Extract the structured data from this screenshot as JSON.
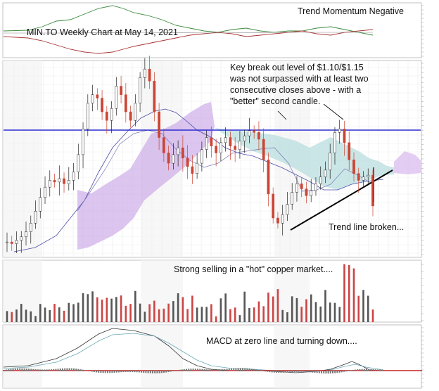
{
  "annotations": {
    "chart_title": "MIN.TO Weekly Chart at May 14, 2021",
    "trend_momentum": "Trend Momentum Negative",
    "breakout_line1": "Key break out level of $1.10/$1.15",
    "breakout_line2": "was not surpassed with at least two",
    "breakout_line3": "consecutive closes above - with a",
    "breakout_line4": "\"better\" second candle.",
    "trendline_broken": "Trend line broken...",
    "selling": "Strong selling in a \"hot\" copper market....",
    "macd": "MACD at zero line and turning down...."
  },
  "chart_data": {
    "type": "line",
    "description_panels": [
      "momentum",
      "price",
      "volume",
      "macd"
    ],
    "price": {
      "series": [
        {
          "name": "MIN.TO weekly close",
          "values": [
            0.44,
            0.43,
            0.45,
            0.47,
            0.5,
            0.55,
            0.62,
            0.7,
            0.76,
            0.8,
            0.79,
            0.81,
            0.78,
            0.8,
            0.85,
            0.95,
            1.1,
            1.25,
            1.3,
            1.28,
            1.2,
            1.15,
            1.22,
            1.35,
            1.3,
            1.2,
            1.15,
            1.25,
            1.4,
            1.45,
            1.38,
            1.2,
            1.05,
            0.96,
            0.9,
            0.95,
            0.99,
            0.93,
            0.88,
            0.84,
            0.9,
            0.98,
            1.05,
            1.0,
            0.96,
            1.02,
            1.05,
            1.0,
            0.98,
            1.03,
            1.06,
            1.09,
            1.08,
            1.04,
            0.92,
            0.72,
            0.58,
            0.55,
            0.6,
            0.66,
            0.73,
            0.78,
            0.75,
            0.71,
            0.74,
            0.78,
            0.82,
            0.86,
            0.96,
            1.08,
            1.1,
            1.02,
            0.92,
            0.84,
            0.8,
            0.82,
            0.83,
            0.65
          ]
        }
      ],
      "key_level": 1.1,
      "ylim": [
        0.35,
        1.5
      ]
    },
    "volume_note": "Strong selling in a \"hot\" copper market....",
    "macd_note": "MACD at zero line and turning down...."
  }
}
